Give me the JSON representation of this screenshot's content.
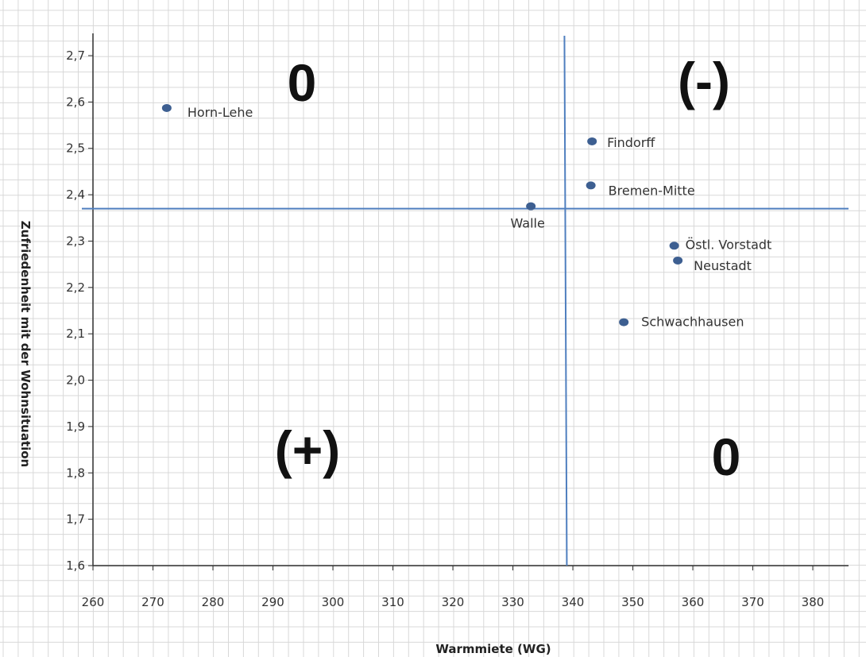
{
  "chart_data": {
    "type": "scatter",
    "xlabel": "Warmmiete (WG)",
    "ylabel": "Zufriedenheit mit der Wohnsituation",
    "xlim": [
      260,
      385
    ],
    "ylim": [
      1.6,
      2.75
    ],
    "x_ticks": [
      "260",
      "270",
      "280",
      "290",
      "300",
      "310",
      "320",
      "330",
      "340",
      "350",
      "360",
      "370",
      "380"
    ],
    "y_ticks": [
      "1,6",
      "1,7",
      "1,8",
      "1,9",
      "2,0",
      "2,1",
      "2,2",
      "2,3",
      "2,4",
      "2,5",
      "2,6",
      "2,7"
    ],
    "grid": true,
    "points": [
      {
        "label": "Horn-Lehe",
        "x": 272.3,
        "y": 2.587
      },
      {
        "label": "Findorff",
        "x": 343.2,
        "y": 2.515
      },
      {
        "label": "Bremen-Mitte",
        "x": 343.0,
        "y": 2.42
      },
      {
        "label": "Walle",
        "x": 333.0,
        "y": 2.375
      },
      {
        "label": "Östl. Vorstadt",
        "x": 356.9,
        "y": 2.29
      },
      {
        "label": "Neustadt",
        "x": 357.5,
        "y": 2.258
      },
      {
        "label": "Schwachhausen",
        "x": 348.5,
        "y": 2.125
      }
    ],
    "reference_lines": {
      "x": 338.8,
      "y": 2.37
    },
    "quadrant_labels": {
      "top_left": "0",
      "top_right": "(-)",
      "bottom_left": "(+)",
      "bottom_right": "0"
    },
    "colors": {
      "point": "#3d5f91",
      "reference_line": "#4f7fbf",
      "grid": "#d8d8d8",
      "axis": "#333333"
    }
  }
}
